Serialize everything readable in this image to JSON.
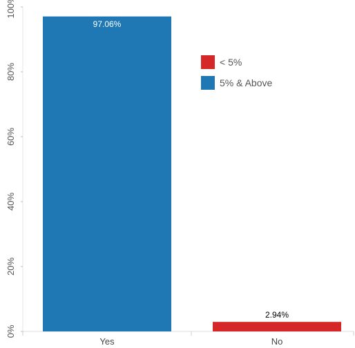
{
  "chart_data": {
    "type": "bar",
    "categories": [
      "Yes",
      "No"
    ],
    "values": [
      97.06,
      2.94
    ],
    "value_labels": [
      "97.06%",
      "2.94%"
    ],
    "value_label_colors": [
      "#ffffff",
      "#000000"
    ],
    "bar_colors": [
      "#1f77b4",
      "#d62728"
    ],
    "ylim": [
      0,
      100
    ],
    "yticks": [
      0,
      20,
      40,
      60,
      80,
      100
    ],
    "ytick_labels": [
      "0%",
      "20%",
      "40%",
      "60%",
      "80%",
      "100%"
    ],
    "title": "",
    "xlabel": "",
    "ylabel": "",
    "grid": false,
    "legend": {
      "placement": "top-right",
      "entries": [
        {
          "label": "< 5%",
          "color": "#d62728"
        },
        {
          "label": "5% & Above",
          "color": "#1f77b4"
        }
      ]
    }
  }
}
